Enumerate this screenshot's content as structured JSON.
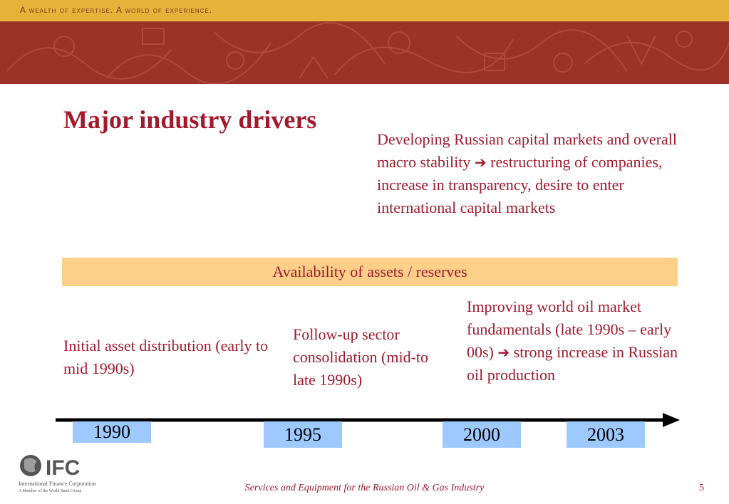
{
  "header": {
    "tagline": "A wealth of expertise. A world of experience."
  },
  "slide": {
    "title": "Major industry drivers",
    "capital_markets": {
      "before": "Developing Russian capital markets and overall macro stability",
      "after": "restructuring of companies, increase in transparency, desire to enter international capital markets"
    },
    "assets_bar": "Availability of assets / reserves",
    "oil_market": {
      "before": "Improving world oil market fundamentals (late 1990s – early 00s)",
      "after": "strong increase in Russian oil production"
    },
    "initial_distribution": "Initial asset distribution (early to mid 1990s)",
    "consolidation": "Follow-up sector consolidation (mid-to late 1990s)",
    "arrow_icon": "right-arrow-icon",
    "timeline": {
      "years": [
        "1990",
        "1995",
        "2000",
        "2003"
      ]
    }
  },
  "logo": {
    "name": "IFC",
    "org": "International Finance Corporation",
    "sub": "A Member of the World Bank Group"
  },
  "footer": {
    "text": "Services and Equipment for the Russian Oil & Gas Industry",
    "page_number": "5"
  },
  "colors": {
    "title_red": "#a3192c",
    "banner": "#9b3326",
    "top_band": "#e6b23a",
    "assets_bar": "#fdd08a",
    "year_box": "#9dc9ff"
  }
}
